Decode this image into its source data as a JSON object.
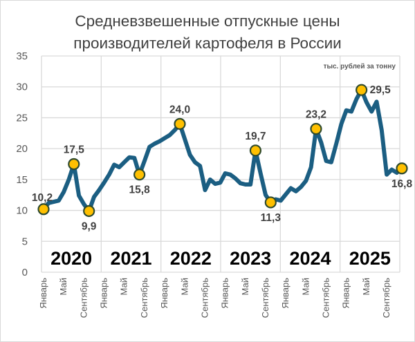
{
  "chart_data": {
    "type": "line",
    "title": [
      "Средневзвешенные отпускные цены",
      "производителей картофеля  в России"
    ],
    "unit_label": "тыс. рублей за тонну",
    "ylim": [
      0,
      35
    ],
    "yticks": [
      0,
      5,
      10,
      15,
      20,
      25,
      30,
      35
    ],
    "grid": true,
    "years": [
      "2020",
      "2021",
      "2022",
      "2023",
      "2024",
      "2025"
    ],
    "xtick_labels": [
      "Январь",
      "Май",
      "Сентябрь"
    ],
    "line_color": "#1B5E82",
    "marker_color": "#FFC000",
    "marker_edge_color": "#2E4A2E",
    "values": [
      10.2,
      11.2,
      11.4,
      11.6,
      13.0,
      15.0,
      17.5,
      12.4,
      11.0,
      9.9,
      12.2,
      13.3,
      14.5,
      15.8,
      17.4,
      17.0,
      17.8,
      18.6,
      18.5,
      15.8,
      18.0,
      20.3,
      20.8,
      21.2,
      21.7,
      22.2,
      23.0,
      24.0,
      21.5,
      19.0,
      17.8,
      17.2,
      13.3,
      15.0,
      14.3,
      14.5,
      16.0,
      15.8,
      15.2,
      14.4,
      14.2,
      14.2,
      19.7,
      16.0,
      12.5,
      11.3,
      11.8,
      11.6,
      12.6,
      13.6,
      13.1,
      13.8,
      14.8,
      17.0,
      23.2,
      21.0,
      18.0,
      17.8,
      20.8,
      24.0,
      26.2,
      26.0,
      28.0,
      29.5,
      27.5,
      26.0,
      27.6,
      23.0,
      15.8,
      16.6,
      16.1,
      16.8
    ],
    "highlights": [
      {
        "index": 0,
        "label": "10,2",
        "position": "above-left"
      },
      {
        "index": 6,
        "label": "17,5",
        "position": "above"
      },
      {
        "index": 9,
        "label": "9,9",
        "position": "below"
      },
      {
        "index": 19,
        "label": "15,8",
        "position": "below"
      },
      {
        "index": 27,
        "label": "24,0",
        "position": "above"
      },
      {
        "index": 42,
        "label": "19,7",
        "position": "above"
      },
      {
        "index": 45,
        "label": "11,3",
        "position": "below"
      },
      {
        "index": 54,
        "label": "23,2",
        "position": "above"
      },
      {
        "index": 63,
        "label": "29,5",
        "position": "right"
      },
      {
        "index": 71,
        "label": "16,8",
        "position": "below"
      }
    ]
  }
}
